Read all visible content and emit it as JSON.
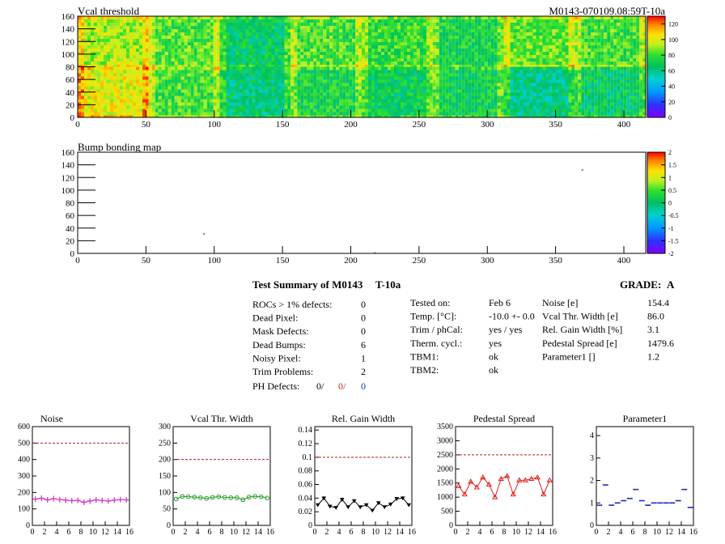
{
  "header": {
    "title": "Vcal threshold",
    "module_id": "M0143-070109.08:59T-10a"
  },
  "chart_data": [
    {
      "type": "heatmap",
      "title": "Vcal threshold",
      "x_ticks": [
        0,
        50,
        100,
        150,
        200,
        250,
        300,
        350,
        400
      ],
      "y_ticks": [
        0,
        20,
        40,
        60,
        80,
        100,
        120,
        140,
        160
      ],
      "xlim": [
        0,
        416
      ],
      "ylim": [
        0,
        160
      ],
      "colorbar_ticks": [
        0,
        20,
        40,
        60,
        80,
        100,
        120
      ],
      "colorbar_range": [
        0,
        130
      ],
      "grid": "2x8 ROC blocks",
      "roc_means": {
        "top": [
          92,
          82,
          66,
          80,
          78,
          72,
          84,
          80
        ],
        "bottom": [
          100,
          80,
          62,
          72,
          68,
          70,
          60,
          66
        ]
      }
    },
    {
      "type": "heatmap",
      "title": "Bump bonding map",
      "x_ticks": [
        0,
        50,
        100,
        150,
        200,
        250,
        300,
        350,
        400
      ],
      "y_ticks": [
        0,
        20,
        40,
        60,
        80,
        100,
        120,
        140,
        160
      ],
      "xlim": [
        0,
        416
      ],
      "ylim": [
        0,
        160
      ],
      "colorbar_ticks": [
        2,
        1.5,
        1,
        0.5,
        0,
        -0.5,
        -1,
        -1.5,
        -2
      ],
      "colorbar_range": [
        -2,
        2
      ],
      "defects": [
        {
          "x": 92,
          "y": 32
        },
        {
          "x": 217,
          "y": 2
        },
        {
          "x": 369,
          "y": 133
        }
      ]
    },
    {
      "type": "line",
      "title": "Noise",
      "x_ticks": [
        0,
        2,
        4,
        6,
        8,
        10,
        12,
        14,
        16
      ],
      "y_ticks": [
        0,
        100,
        200,
        300,
        400,
        500,
        600
      ],
      "xlim": [
        0,
        16
      ],
      "ylim": [
        0,
        600
      ],
      "threshold": 500,
      "color": "#d62fc8",
      "marker": "plus",
      "x": [
        0.5,
        1.5,
        2.5,
        3.5,
        4.5,
        5.5,
        6.5,
        7.5,
        8.5,
        9.5,
        10.5,
        11.5,
        12.5,
        13.5,
        14.5,
        15.5
      ],
      "values": [
        160,
        165,
        155,
        162,
        157,
        153,
        150,
        152,
        140,
        148,
        155,
        151,
        148,
        153,
        157,
        155
      ]
    },
    {
      "type": "line",
      "title": "Vcal Thr. Width",
      "x_ticks": [
        0,
        2,
        4,
        6,
        8,
        10,
        12,
        14,
        16
      ],
      "y_ticks": [
        0,
        50,
        100,
        150,
        200,
        250,
        300
      ],
      "xlim": [
        0,
        16
      ],
      "ylim": [
        0,
        300
      ],
      "threshold": 200,
      "color": "#2a9a2a",
      "marker": "circle",
      "x": [
        0.5,
        1.5,
        2.5,
        3.5,
        4.5,
        5.5,
        6.5,
        7.5,
        8.5,
        9.5,
        10.5,
        11.5,
        12.5,
        13.5,
        14.5,
        15.5
      ],
      "values": [
        80,
        88,
        87,
        86,
        84,
        82,
        85,
        87,
        85,
        84,
        84,
        78,
        86,
        88,
        87,
        83
      ]
    },
    {
      "type": "line",
      "title": "Rel. Gain Width",
      "x_ticks": [
        0,
        2,
        4,
        6,
        8,
        10,
        12,
        14,
        16
      ],
      "y_ticks": [
        0,
        0.02,
        0.04,
        0.06,
        0.08,
        0.1,
        0.12,
        0.14
      ],
      "xlim": [
        0,
        16
      ],
      "ylim": [
        0,
        0.145
      ],
      "threshold": 0.1,
      "color": "#000000",
      "marker": "triangle-down",
      "x": [
        0.5,
        1.5,
        2.5,
        3.5,
        4.5,
        5.5,
        6.5,
        7.5,
        8.5,
        9.5,
        10.5,
        11.5,
        12.5,
        13.5,
        14.5,
        15.5
      ],
      "values": [
        0.03,
        0.04,
        0.028,
        0.026,
        0.038,
        0.027,
        0.036,
        0.027,
        0.03,
        0.022,
        0.033,
        0.027,
        0.031,
        0.039,
        0.04,
        0.03
      ]
    },
    {
      "type": "line",
      "title": "Pedestal Spread",
      "x_ticks": [
        0,
        2,
        4,
        6,
        8,
        10,
        12,
        14,
        16
      ],
      "y_ticks": [
        0,
        500,
        1000,
        1500,
        2000,
        2500,
        3000,
        3500
      ],
      "xlim": [
        0,
        16
      ],
      "ylim": [
        0,
        3500
      ],
      "threshold": 2500,
      "color": "#e0201c",
      "marker": "triangle-up-open",
      "x": [
        0.5,
        1.5,
        2.5,
        3.5,
        4.5,
        5.5,
        6.5,
        7.5,
        8.5,
        9.5,
        10.5,
        11.5,
        12.5,
        13.5,
        14.5,
        15.5
      ],
      "values": [
        1400,
        1100,
        1550,
        1350,
        1700,
        1450,
        1000,
        1650,
        1750,
        1100,
        1600,
        1600,
        1650,
        1700,
        1100,
        1600
      ]
    },
    {
      "type": "scatter",
      "title": "Parameter1",
      "x_ticks": [
        0,
        2,
        4,
        6,
        8,
        10,
        12,
        14,
        16
      ],
      "y_ticks": [
        0,
        1,
        2,
        3,
        4
      ],
      "xlim": [
        0,
        16
      ],
      "ylim": [
        0,
        4.4
      ],
      "color": "#1a2fb0",
      "marker": "hbar",
      "x": [
        0.5,
        1.5,
        2.5,
        3.5,
        4.5,
        5.5,
        6.5,
        7.5,
        8.5,
        9.5,
        10.5,
        11.5,
        12.5,
        13.5,
        14.5,
        15.5
      ],
      "values": [
        0.9,
        1.8,
        0.9,
        1.0,
        1.1,
        1.2,
        1.6,
        1.1,
        0.9,
        1.0,
        1.0,
        1.0,
        1.0,
        1.1,
        1.6,
        0.8
      ]
    }
  ],
  "summary": {
    "title": "Test Summary of M0143",
    "tag": "T-10a",
    "grade_label": "GRADE:",
    "grade": "A",
    "col1": [
      {
        "label": "ROCs > 1% defects:",
        "value": "0"
      },
      {
        "label": "Dead Pixel:",
        "value": "0"
      },
      {
        "label": "Mask Defects:",
        "value": "0"
      },
      {
        "label": "Dead Bumps:",
        "value": "6"
      },
      {
        "label": "Noisy Pixel:",
        "value": "1"
      },
      {
        "label": "Trim Problems:",
        "value": "2"
      }
    ],
    "ph_label": "PH Defects:",
    "ph_values": [
      "0/",
      "0/",
      "0"
    ],
    "ph_colors": [
      "#000000",
      "#e02020",
      "#1030c0"
    ],
    "col2": [
      {
        "label": "Tested on:",
        "value": "Feb 6"
      },
      {
        "label": "Temp. [°C]:",
        "value": "-10.0 +- 0.0"
      },
      {
        "label": "Trim / phCal:",
        "value": "yes / yes"
      },
      {
        "label": "Therm. cycl.:",
        "value": "yes"
      },
      {
        "label": "TBM1:",
        "value": "ok"
      },
      {
        "label": "TBM2:",
        "value": "ok"
      }
    ],
    "col3": [
      {
        "label": "Noise [e]",
        "value": "154.4"
      },
      {
        "label": "Vcal Thr. Width [e]",
        "value": "86.0"
      },
      {
        "label": "Rel. Gain Width [%]",
        "value": "3.1"
      },
      {
        "label": "Pedestal Spread [e]",
        "value": "1479.6"
      },
      {
        "label": "Parameter1 []",
        "value": "1.2"
      }
    ]
  }
}
